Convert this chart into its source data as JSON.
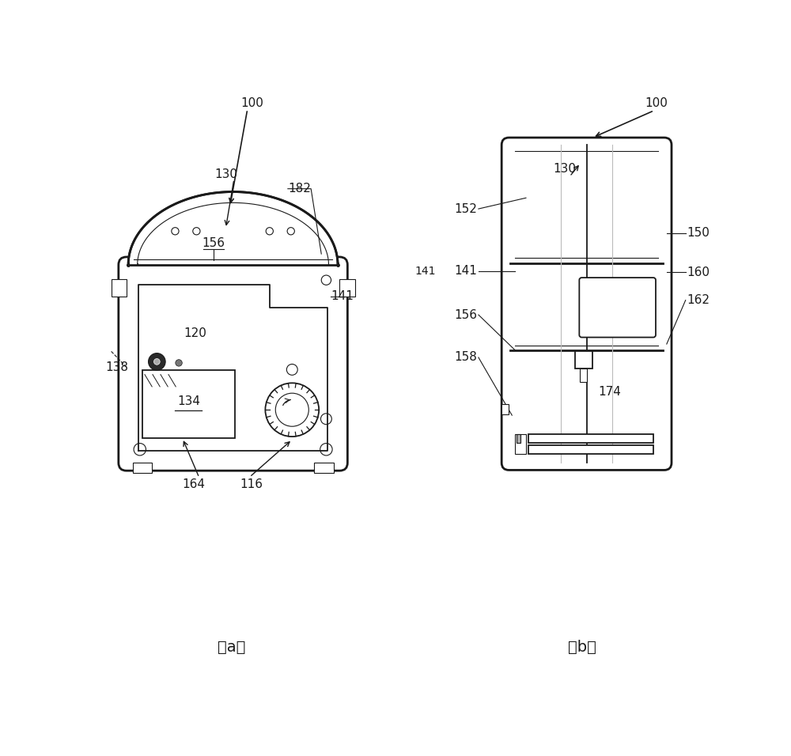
{
  "bg_color": "#ffffff",
  "line_color": "#1a1a1a",
  "lighter_line_color": "#bbbbbb",
  "fig_width": 10.0,
  "fig_height": 9.56,
  "dpi": 100,
  "caption_a": [
    2.15,
    0.42
  ],
  "caption_b": [
    7.9,
    0.42
  ],
  "lw_main": 2.0,
  "lw_med": 1.3,
  "lw_light": 0.8
}
